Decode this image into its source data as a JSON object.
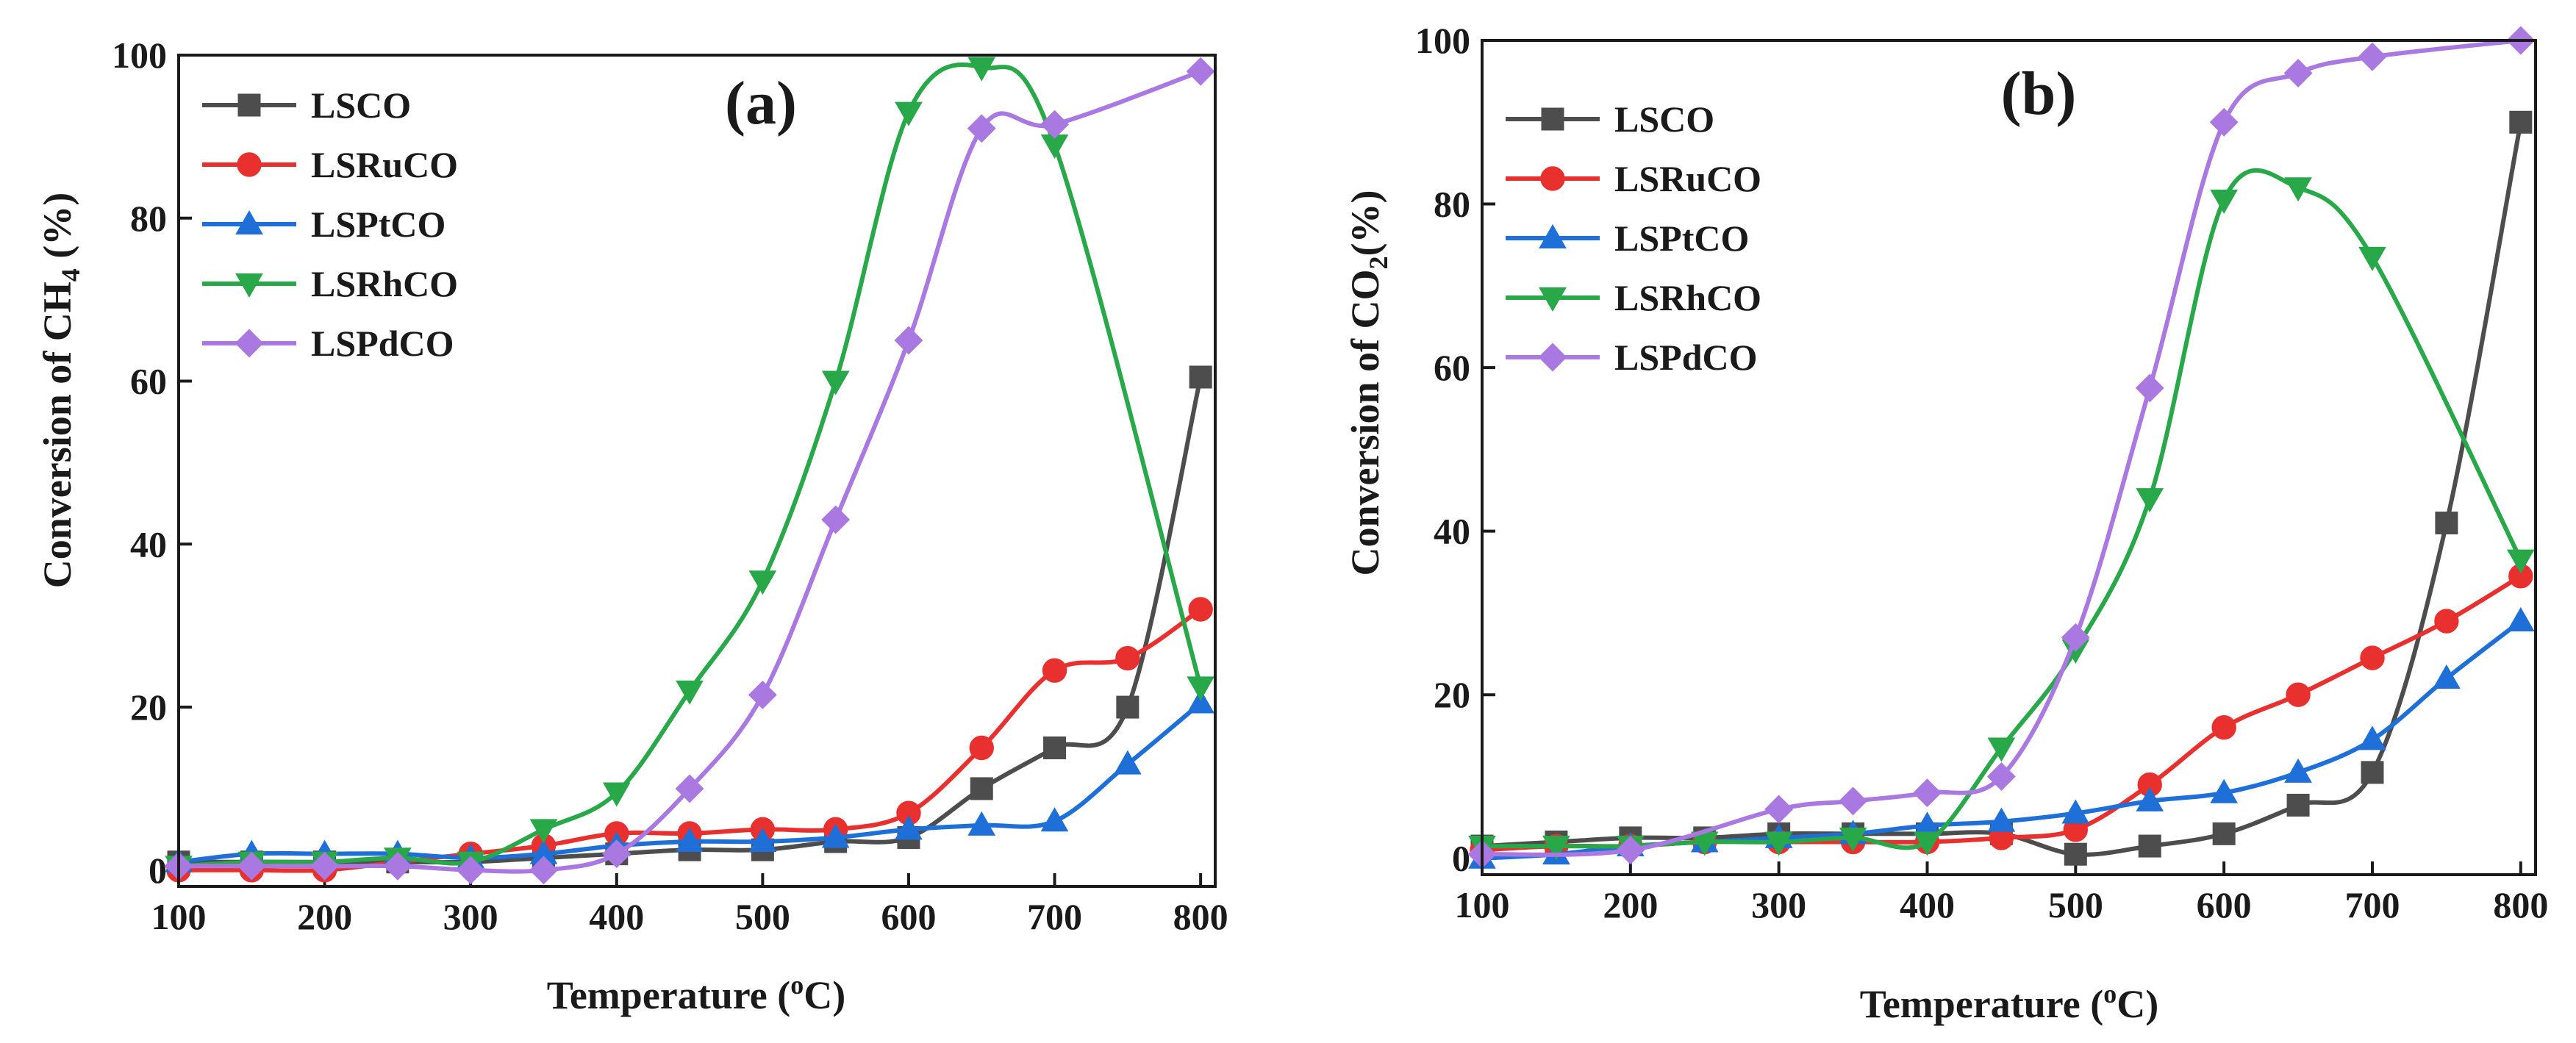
{
  "chart_data": [
    {
      "type": "line",
      "panel_label": "(a)",
      "xlabel": "Temperature (",
      "xlabel_sup": "o",
      "xlabel_after": "C)",
      "ylabel": "Conversion of CH",
      "ylabel_sub": "4",
      "ylabel_after": " (%)",
      "xlim": [
        100,
        810
      ],
      "ylim": [
        -2,
        100
      ],
      "xticks": [
        100,
        200,
        300,
        400,
        500,
        600,
        700,
        800
      ],
      "yticks": [
        0,
        20,
        40,
        60,
        80,
        100
      ],
      "legend_position": "top-left",
      "series": [
        {
          "name": "LSCO",
          "color": "#4d4d4d",
          "marker": "square",
          "x": [
            100,
            150,
            200,
            250,
            300,
            350,
            400,
            450,
            500,
            550,
            600,
            650,
            700,
            750,
            800
          ],
          "y": [
            1,
            1,
            1,
            1,
            1,
            1.5,
            2,
            2.5,
            2.5,
            3.5,
            4,
            10,
            15,
            20,
            60.5
          ]
        },
        {
          "name": "LSRuCO",
          "color": "#e8312f",
          "marker": "circle",
          "x": [
            100,
            150,
            200,
            250,
            300,
            350,
            400,
            450,
            500,
            550,
            600,
            650,
            700,
            750,
            800
          ],
          "y": [
            0,
            0,
            0,
            1,
            2,
            3,
            4.5,
            4.5,
            5,
            5,
            7,
            15,
            24.5,
            26,
            32
          ]
        },
        {
          "name": "LSPtCO",
          "color": "#1f6fd9",
          "marker": "triangle-up",
          "x": [
            100,
            150,
            200,
            250,
            300,
            350,
            400,
            450,
            500,
            550,
            600,
            650,
            700,
            750,
            800
          ],
          "y": [
            1,
            2,
            2,
            2,
            1.5,
            2,
            3,
            3.5,
            3.5,
            4,
            5,
            5.5,
            6,
            13,
            20.5
          ]
        },
        {
          "name": "LSRhCO",
          "color": "#29a84a",
          "marker": "triangle-down",
          "x": [
            100,
            150,
            200,
            250,
            300,
            350,
            400,
            450,
            500,
            550,
            600,
            650,
            700,
            800
          ],
          "y": [
            0.5,
            1,
            1,
            1.5,
            1,
            5,
            9.5,
            22,
            35.5,
            60,
            93,
            98.5,
            89,
            22.5
          ]
        },
        {
          "name": "LSPdCO",
          "color": "#a978e0",
          "marker": "diamond",
          "x": [
            100,
            150,
            200,
            250,
            300,
            350,
            400,
            450,
            500,
            550,
            600,
            650,
            700,
            800
          ],
          "y": [
            0.5,
            0.5,
            0.5,
            0.5,
            0,
            0,
            2,
            10,
            21.5,
            43,
            65,
            91,
            91.5,
            98
          ]
        }
      ]
    },
    {
      "type": "line",
      "panel_label": "(b)",
      "xlabel": "Temperature (",
      "xlabel_sup": "o",
      "xlabel_after": "C)",
      "ylabel": "Conversion of CO",
      "ylabel_sub": "2",
      "ylabel_after": "(%)",
      "xlim": [
        100,
        810
      ],
      "ylim": [
        -2,
        100
      ],
      "xticks": [
        100,
        200,
        300,
        400,
        500,
        600,
        700,
        800
      ],
      "yticks": [
        0,
        20,
        40,
        60,
        80,
        100
      ],
      "legend_position": "top-left",
      "series": [
        {
          "name": "LSCO",
          "color": "#4d4d4d",
          "marker": "square",
          "x": [
            100,
            150,
            200,
            250,
            300,
            350,
            400,
            450,
            500,
            550,
            600,
            650,
            700,
            750,
            800
          ],
          "y": [
            1.5,
            2,
            2.5,
            2.5,
            3,
            3,
            3,
            3,
            0.5,
            1.5,
            3,
            6.5,
            10.5,
            41,
            90
          ]
        },
        {
          "name": "LSRuCO",
          "color": "#e8312f",
          "marker": "circle",
          "x": [
            100,
            150,
            200,
            250,
            300,
            350,
            400,
            450,
            500,
            550,
            600,
            650,
            700,
            750,
            800
          ],
          "y": [
            1,
            1.5,
            1.5,
            2,
            2,
            2,
            2,
            2.5,
            3.5,
            9,
            16,
            20,
            24.5,
            29,
            34.5
          ]
        },
        {
          "name": "LSPtCO",
          "color": "#1f6fd9",
          "marker": "triangle-up",
          "x": [
            100,
            150,
            200,
            250,
            300,
            350,
            400,
            450,
            500,
            550,
            600,
            650,
            700,
            750,
            800
          ],
          "y": [
            0,
            0.5,
            1.5,
            2,
            2.5,
            3,
            4,
            4.5,
            5.5,
            7,
            8,
            10.5,
            14.5,
            22,
            29
          ]
        },
        {
          "name": "LSRhCO",
          "color": "#29a84a",
          "marker": "triangle-down",
          "x": [
            100,
            150,
            200,
            250,
            300,
            350,
            400,
            450,
            500,
            550,
            600,
            650,
            700,
            800
          ],
          "y": [
            1.5,
            1.5,
            1.5,
            2,
            2,
            2.5,
            2,
            13.5,
            25.5,
            44,
            80.5,
            82,
            73.5,
            36.5
          ]
        },
        {
          "name": "LSPdCO",
          "color": "#a978e0",
          "marker": "diamond",
          "x": [
            100,
            200,
            300,
            350,
            400,
            450,
            500,
            550,
            600,
            650,
            700,
            800
          ],
          "y": [
            0.5,
            1,
            6,
            7,
            8,
            10,
            27,
            57.5,
            90,
            96,
            98,
            100
          ]
        }
      ]
    }
  ]
}
